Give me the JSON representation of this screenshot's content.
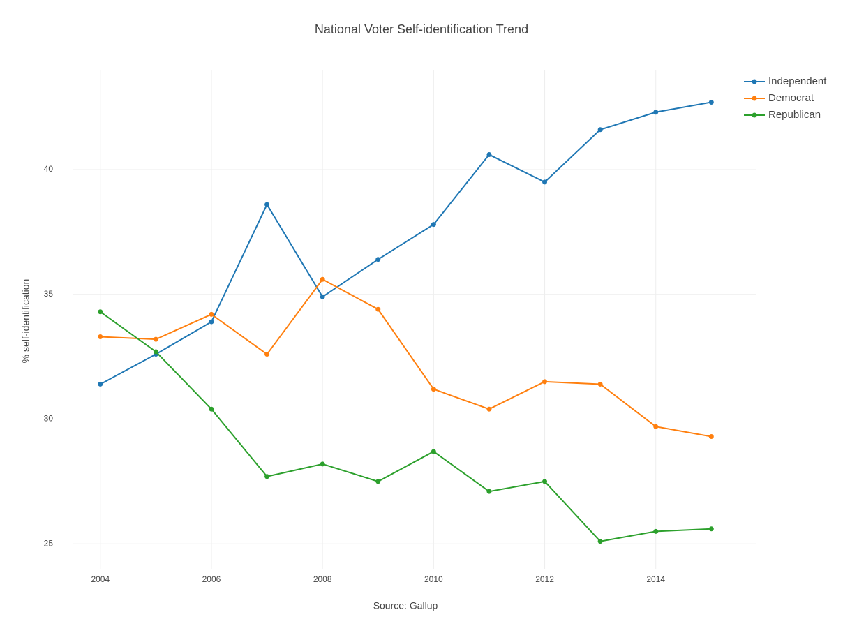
{
  "chart_data": {
    "type": "line",
    "title": "National Voter Self-identification Trend",
    "x_label": "Source: Gallup",
    "y_label": "% self-identification",
    "x": [
      2004,
      2005,
      2006,
      2007,
      2008,
      2009,
      2010,
      2011,
      2012,
      2013,
      2014,
      2015
    ],
    "series": [
      {
        "name": "Independent",
        "color": "#1f77b4",
        "values": [
          31.4,
          32.6,
          33.9,
          38.6,
          34.9,
          36.4,
          37.8,
          40.6,
          39.5,
          41.6,
          42.3,
          42.7
        ]
      },
      {
        "name": "Democrat",
        "color": "#ff7f0e",
        "values": [
          33.3,
          33.2,
          34.2,
          32.6,
          35.6,
          34.4,
          31.2,
          30.4,
          31.5,
          31.4,
          29.7,
          29.3
        ]
      },
      {
        "name": "Republican",
        "color": "#2ca02c",
        "values": [
          34.3,
          32.7,
          30.4,
          27.7,
          28.2,
          27.5,
          28.7,
          27.1,
          27.5,
          25.1,
          25.5,
          25.6
        ]
      }
    ],
    "xlim": [
      2003.5,
      2015.8
    ],
    "xticks": [
      2004,
      2006,
      2008,
      2010,
      2012,
      2014
    ],
    "ylim": [
      24,
      44
    ],
    "yticks": [
      25,
      30,
      35,
      40
    ],
    "grid": true,
    "legend": "top-right"
  }
}
